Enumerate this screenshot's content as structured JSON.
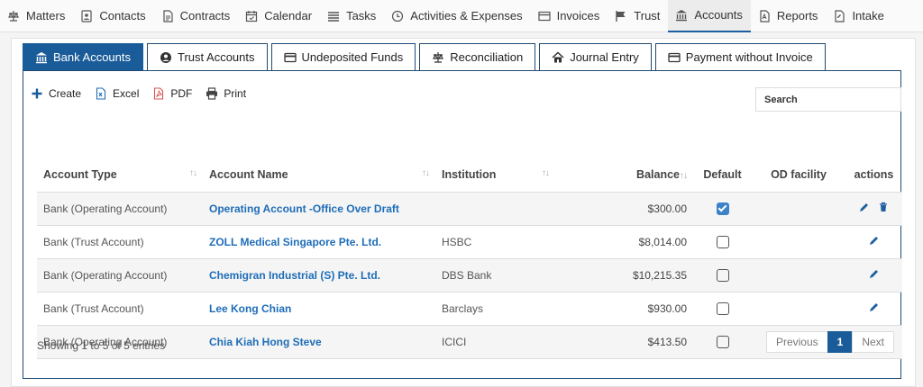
{
  "nav": {
    "items": [
      {
        "label": "Matters"
      },
      {
        "label": "Contacts"
      },
      {
        "label": "Contracts"
      },
      {
        "label": "Calendar"
      },
      {
        "label": "Tasks"
      },
      {
        "label": "Activities & Expenses"
      },
      {
        "label": "Invoices"
      },
      {
        "label": "Trust"
      },
      {
        "label": "Accounts"
      },
      {
        "label": "Reports"
      },
      {
        "label": "Intake"
      }
    ],
    "active": "Accounts"
  },
  "tabs": [
    {
      "label": "Bank Accounts"
    },
    {
      "label": "Trust Accounts"
    },
    {
      "label": "Undeposited Funds"
    },
    {
      "label": "Reconciliation"
    },
    {
      "label": "Journal Entry"
    },
    {
      "label": "Payment without Invoice"
    }
  ],
  "toolbar": {
    "create": "Create",
    "excel": "Excel",
    "pdf": "PDF",
    "print": "Print"
  },
  "search": {
    "placeholder": "Search"
  },
  "table": {
    "headers": {
      "account_type": "Account Type",
      "account_name": "Account Name",
      "institution": "Institution",
      "balance": "Balance",
      "default": "Default",
      "od_facility": "OD facility",
      "actions": "actions"
    },
    "rows": [
      {
        "type": "Bank (Operating Account)",
        "name": "Operating Account -Office Over Draft",
        "institution": "",
        "balance": "$300.00",
        "default": true,
        "od": ""
      },
      {
        "type": "Bank (Trust Account)",
        "name": "ZOLL Medical Singapore Pte. Ltd.",
        "institution": "HSBC",
        "balance": "$8,014.00",
        "default": false,
        "od": ""
      },
      {
        "type": "Bank (Operating Account)",
        "name": "Chemigran Industrial (S) Pte. Ltd.",
        "institution": "DBS Bank",
        "balance": "$10,215.35",
        "default": false,
        "od": ""
      },
      {
        "type": "Bank (Trust Account)",
        "name": "Lee Kong Chian",
        "institution": "Barclays",
        "balance": "$930.00",
        "default": false,
        "od": ""
      },
      {
        "type": "Bank (Operating Account)",
        "name": "Chia Kiah Hong Steve",
        "institution": "ICICI",
        "balance": "$413.50",
        "default": false,
        "od": ""
      }
    ]
  },
  "info": "Showing 1 to 5 of 5 entries",
  "pager": {
    "previous": "Previous",
    "current": "1",
    "next": "Next"
  },
  "colors": {
    "accent": "#1a5c99",
    "link": "#1e6db8"
  }
}
